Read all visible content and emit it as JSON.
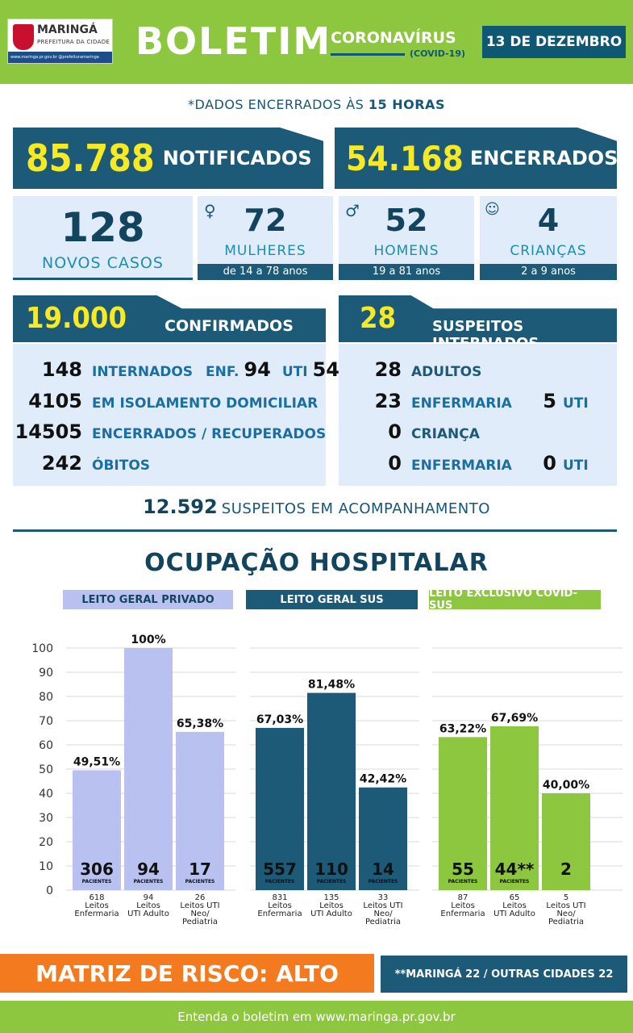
{
  "header": {
    "logo": {
      "name": "MARINGÁ",
      "subtitle": "PREFEITURA DA CIDADE",
      "links": "www.maringa.pr.gov.br  @prefeituramaringa"
    },
    "title": "BOLETIM",
    "topic": "CORONAVÍRUS",
    "topic_sub": "(COVID-19)",
    "date": "13 DE DEZEMBRO",
    "colors": {
      "green": "#8dc63f",
      "navy": "#1c5a78",
      "yellow": "#f8ea22",
      "orange": "#f47a20"
    }
  },
  "note": {
    "prefix": "*DADOS ENCERRADOS ÀS ",
    "time": "15 HORAS"
  },
  "totals": {
    "notificados": {
      "value": "85.788",
      "label": "NOTIFICADOS"
    },
    "encerrados": {
      "value": "54.168",
      "label": "ENCERRADOS"
    }
  },
  "new_cases": {
    "total": {
      "value": "128",
      "label": "NOVOS CASOS"
    },
    "women": {
      "value": "72",
      "label": "MULHERES",
      "range": "de 14 a 78 anos",
      "icon": "woman-icon"
    },
    "men": {
      "value": "52",
      "label": "HOMENS",
      "range": "19 a 81 anos",
      "icon": "man-icon"
    },
    "children": {
      "value": "4",
      "label": "CRIANÇAS",
      "range": "2 a 9 anos",
      "icon": "baby-icon"
    }
  },
  "confirmed": {
    "value": "19.000",
    "label": "CONFIRMADOS",
    "rows": [
      {
        "value": "148",
        "label": "INTERNADOS",
        "enf_label": "ENF.",
        "enf_value": "94",
        "uti_label": "UTI",
        "uti_value": "54"
      },
      {
        "value": "4105",
        "label": "EM ISOLAMENTO DOMICILIAR"
      },
      {
        "value": "14505",
        "label": "ENCERRADOS / RECUPERADOS"
      },
      {
        "value": "242",
        "label": "ÓBITOS"
      }
    ]
  },
  "suspects": {
    "value": "28",
    "label": "SUSPEITOS INTERNADOS",
    "rows": [
      {
        "value": "28",
        "label": "ADULTOS"
      },
      {
        "value": "23",
        "label": "ENFERMARIA",
        "uti_value": "5",
        "uti_label": "UTI"
      },
      {
        "value": "0",
        "label": "CRIANÇA"
      },
      {
        "value": "0",
        "label": "ENFERMARIA",
        "uti_value": "0",
        "uti_label": "UTI"
      }
    ]
  },
  "monitoring": {
    "value": "12.592",
    "label": "SUSPEITOS EM ACOMPANHAMENTO"
  },
  "occupation": {
    "title": "OCUPAÇÃO HOSPITALAR",
    "patients_label": "PACIENTES",
    "groups": [
      {
        "label": "LEITO GERAL PRIVADO",
        "bg": "#b8c1f0",
        "fg": "#13445d"
      },
      {
        "label": "LEITO GERAL SUS",
        "bg": "#1c5a78",
        "fg": "#ffffff"
      },
      {
        "label": "LEITO EXCLUSIVO COVID-SUS",
        "bg": "#8dc63f",
        "fg": "#ffffff"
      }
    ]
  },
  "chart_data": {
    "type": "bar",
    "ylim": [
      0,
      100
    ],
    "yticks": [
      0,
      10,
      20,
      30,
      40,
      50,
      60,
      70,
      80,
      90,
      100
    ],
    "groups": [
      {
        "name": "LEITO GERAL PRIVADO",
        "color": "#b8c1f0",
        "bars": [
          {
            "pct": 49.51,
            "pct_label": "49,51%",
            "patients": "306",
            "show_patients_label": true,
            "caption": [
              "618",
              "Leitos",
              "Enfermaria"
            ]
          },
          {
            "pct": 100,
            "pct_label": "100%",
            "patients": "94",
            "show_patients_label": true,
            "caption": [
              "94",
              "Leitos",
              "UTI Adulto"
            ]
          },
          {
            "pct": 65.38,
            "pct_label": "65,38%",
            "patients": "17",
            "show_patients_label": true,
            "caption": [
              "26",
              "Leitos UTI",
              "Neo/",
              "Pediatria"
            ]
          }
        ]
      },
      {
        "name": "LEITO GERAL SUS",
        "color": "#1c5a78",
        "bars": [
          {
            "pct": 67.03,
            "pct_label": "67,03%",
            "patients": "557",
            "show_patients_label": true,
            "caption": [
              "831",
              "Leitos",
              "Enfermaria"
            ]
          },
          {
            "pct": 81.48,
            "pct_label": "81,48%",
            "patients": "110",
            "show_patients_label": true,
            "caption": [
              "135",
              "Leitos",
              "UTI Adulto"
            ]
          },
          {
            "pct": 42.42,
            "pct_label": "42,42%",
            "patients": "14",
            "show_patients_label": true,
            "caption": [
              "33",
              "Leitos UTI",
              "Neo/",
              "Pediatria"
            ]
          }
        ]
      },
      {
        "name": "LEITO EXCLUSIVO COVID-SUS",
        "color": "#8dc63f",
        "bars": [
          {
            "pct": 63.22,
            "pct_label": "63,22%",
            "patients": "55",
            "show_patients_label": true,
            "caption": [
              "87",
              "Leitos",
              "Enfermaria"
            ]
          },
          {
            "pct": 67.69,
            "pct_label": "67,69%",
            "patients": "44**",
            "show_patients_label": true,
            "caption": [
              "65",
              "Leitos",
              "UTI Adulto"
            ]
          },
          {
            "pct": 40.0,
            "pct_label": "40,00%",
            "patients": "2",
            "show_patients_label": false,
            "caption": [
              "5",
              "Leitos UTI",
              "Neo/",
              "Pediatria"
            ]
          }
        ]
      }
    ]
  },
  "risk": {
    "label": "MATRIZ DE RISCO: ALTO"
  },
  "cities": {
    "label": "**MARINGÁ 22 / OUTRAS CIDADES 22"
  },
  "footer": {
    "text": "Entenda o boletim em www.maringa.pr.gov.br"
  }
}
